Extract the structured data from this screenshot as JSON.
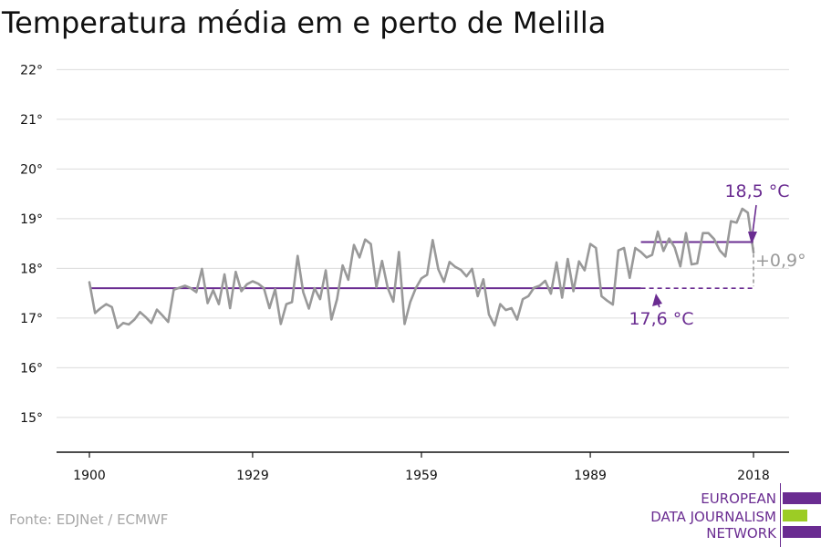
{
  "chart_data": {
    "type": "line",
    "title": "Temperatura média em e perto de Melilla",
    "xlabel": "",
    "ylabel": "",
    "x_range": [
      1900,
      2018
    ],
    "y_range": [
      14.3,
      22.3
    ],
    "x_ticks": [
      1900,
      1929,
      1959,
      1989,
      2018
    ],
    "x_tick_labels": [
      "1900",
      "1929",
      "1959",
      "1989",
      "2018"
    ],
    "y_ticks": [
      15,
      16,
      17,
      18,
      19,
      20,
      21,
      22
    ],
    "y_tick_labels": [
      "15°",
      "16°",
      "17°",
      "18°",
      "19°",
      "20°",
      "21°",
      "22°"
    ],
    "grid": "horizontal",
    "series": [
      {
        "name": "",
        "color": "#999999",
        "x": [
          1900,
          1901,
          1902,
          1903,
          1904,
          1905,
          1906,
          1907,
          1908,
          1909,
          1910,
          1911,
          1912,
          1913,
          1914,
          1915,
          1916,
          1917,
          1918,
          1919,
          1920,
          1921,
          1922,
          1923,
          1924,
          1925,
          1926,
          1927,
          1928,
          1929,
          1930,
          1931,
          1932,
          1933,
          1934,
          1935,
          1936,
          1937,
          1938,
          1939,
          1940,
          1941,
          1942,
          1943,
          1944,
          1945,
          1946,
          1947,
          1948,
          1949,
          1950,
          1951,
          1952,
          1953,
          1954,
          1955,
          1956,
          1957,
          1958,
          1959,
          1960,
          1961,
          1962,
          1963,
          1964,
          1965,
          1966,
          1967,
          1968,
          1969,
          1970,
          1971,
          1972,
          1973,
          1974,
          1975,
          1976,
          1977,
          1978,
          1979,
          1980,
          1981,
          1982,
          1983,
          1984,
          1985,
          1986,
          1987,
          1988,
          1989,
          1990,
          1991,
          1992,
          1993,
          1994,
          1995,
          1996,
          1997,
          1998,
          1999,
          2000,
          2001,
          2002,
          2003,
          2004,
          2005,
          2006,
          2007,
          2008,
          2009,
          2010,
          2011,
          2012,
          2013,
          2014,
          2015,
          2016,
          2017,
          2018
        ],
        "values": [
          17.72,
          17.1,
          17.2,
          17.28,
          17.22,
          16.8,
          16.9,
          16.87,
          16.97,
          17.12,
          17.02,
          16.9,
          17.17,
          17.05,
          16.92,
          17.57,
          17.61,
          17.65,
          17.6,
          17.52,
          17.99,
          17.3,
          17.56,
          17.28,
          17.88,
          17.2,
          17.93,
          17.54,
          17.68,
          17.74,
          17.69,
          17.6,
          17.2,
          17.58,
          16.88,
          17.28,
          17.32,
          18.25,
          17.52,
          17.19,
          17.6,
          17.38,
          17.96,
          16.97,
          17.38,
          18.06,
          17.77,
          18.47,
          18.22,
          18.58,
          18.49,
          17.62,
          18.15,
          17.61,
          17.33,
          18.33,
          16.88,
          17.32,
          17.6,
          17.8,
          17.87,
          18.57,
          17.98,
          17.73,
          18.13,
          18.03,
          17.97,
          17.84,
          17.99,
          17.44,
          17.78,
          17.07,
          16.85,
          17.28,
          17.16,
          17.2,
          16.97,
          17.38,
          17.44,
          17.61,
          17.65,
          17.75,
          17.49,
          18.12,
          17.41,
          18.19,
          17.54,
          18.14,
          17.96,
          18.49,
          18.41,
          17.44,
          17.35,
          17.27,
          18.36,
          18.41,
          17.81,
          18.41,
          18.33,
          18.22,
          18.27,
          18.74,
          18.35,
          18.6,
          18.42,
          18.04,
          18.71,
          18.08,
          18.1,
          18.71,
          18.71,
          18.59,
          18.36,
          18.24,
          18.95,
          18.92,
          19.2,
          19.12,
          18.32
        ]
      }
    ],
    "reference_lines": [
      {
        "label": "17,6 °C",
        "value": 17.6,
        "from": 1900,
        "to": 1998,
        "dashed_to": 2018,
        "color": "#6a2c91"
      },
      {
        "label": "18,5 °C",
        "value": 18.53,
        "from": 1998,
        "to": 2018,
        "color": "#6a2c91"
      }
    ],
    "difference": {
      "label": "+0,9°",
      "from_value": 17.6,
      "to_value": 18.53,
      "at": 2018,
      "color": "#999999"
    }
  },
  "source": "Fonte: EDJNet / ECMWF",
  "logo": {
    "lines": [
      "EUROPEAN",
      "DATA JOURNALISM",
      "NETWORK"
    ],
    "colors": {
      "primary": "#6a2c91",
      "accent": "#9ccc25"
    }
  }
}
